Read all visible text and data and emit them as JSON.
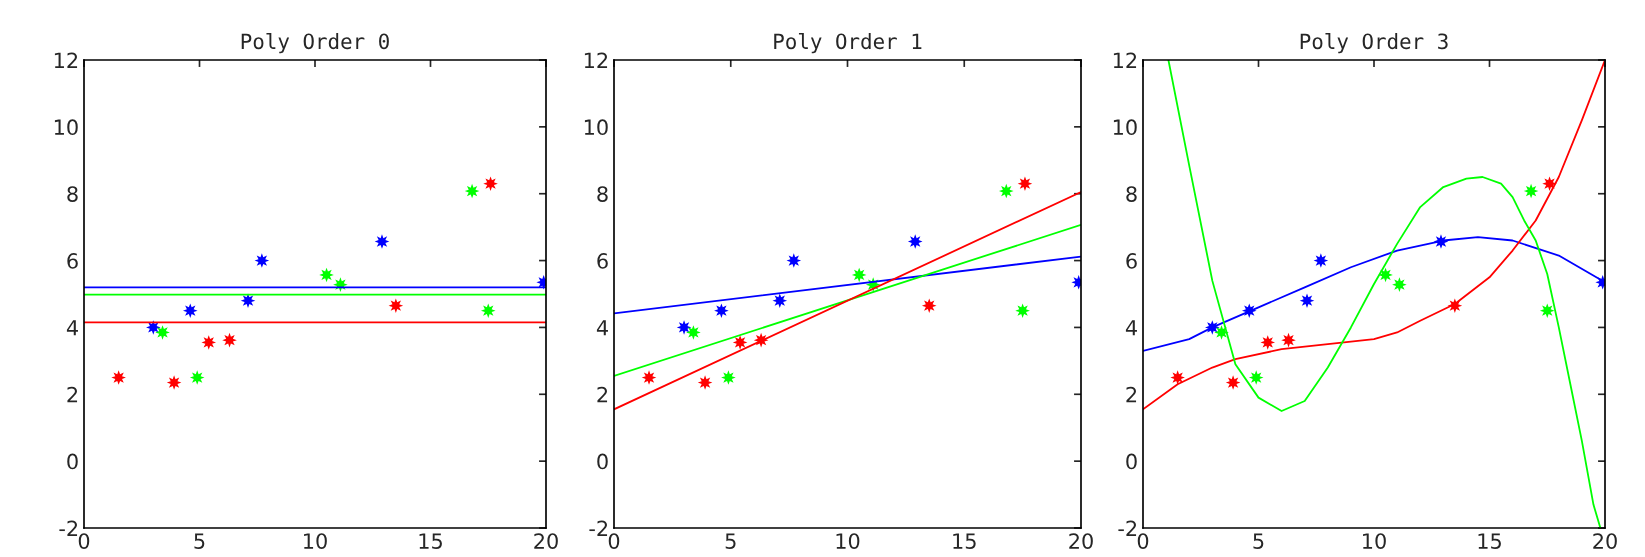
{
  "chart_data": [
    {
      "type": "scatter",
      "title": "Poly Order 0",
      "xlim": [
        0,
        20
      ],
      "ylim": [
        -2,
        12
      ],
      "xticks": [
        0,
        5,
        10,
        15,
        20
      ],
      "yticks": [
        -2,
        0,
        2,
        4,
        6,
        8,
        10,
        12
      ],
      "grid": false,
      "series": [
        {
          "marker": "star",
          "color": "#ff0000",
          "x": [
            1.5,
            3.9,
            5.4,
            6.3,
            13.5,
            17.6
          ],
          "values": [
            2.5,
            2.35,
            3.55,
            3.62,
            4.65,
            8.3
          ]
        },
        {
          "marker": "star",
          "color": "#0000ff",
          "x": [
            3.0,
            4.6,
            7.1,
            7.7,
            12.9,
            19.9
          ],
          "values": [
            4.0,
            4.5,
            4.8,
            6.0,
            6.57,
            5.35
          ]
        },
        {
          "marker": "star",
          "color": "#00ff00",
          "x": [
            3.4,
            4.9,
            10.5,
            11.1,
            16.8,
            17.5
          ],
          "values": [
            3.85,
            2.5,
            5.57,
            5.28,
            8.08,
            4.5
          ]
        },
        {
          "type": "line",
          "marker": "none",
          "color": "#0000ff",
          "x": [
            0,
            20
          ],
          "values": [
            5.2,
            5.2
          ]
        },
        {
          "type": "line",
          "marker": "none",
          "color": "#00ff00",
          "x": [
            0,
            20
          ],
          "values": [
            4.98,
            4.98
          ]
        },
        {
          "type": "line",
          "marker": "none",
          "color": "#ff0000",
          "x": [
            0,
            20
          ],
          "values": [
            4.15,
            4.15
          ]
        }
      ]
    },
    {
      "type": "scatter",
      "title": "Poly Order 1",
      "xlim": [
        0,
        20
      ],
      "ylim": [
        -2,
        12
      ],
      "xticks": [
        0,
        5,
        10,
        15,
        20
      ],
      "yticks": [
        -2,
        0,
        2,
        4,
        6,
        8,
        10,
        12
      ],
      "grid": false,
      "series": [
        {
          "marker": "star",
          "color": "#ff0000",
          "x": [
            1.5,
            3.9,
            5.4,
            6.3,
            13.5,
            17.6
          ],
          "values": [
            2.5,
            2.35,
            3.55,
            3.62,
            4.65,
            8.3
          ]
        },
        {
          "marker": "star",
          "color": "#0000ff",
          "x": [
            3.0,
            4.6,
            7.1,
            7.7,
            12.9,
            19.9
          ],
          "values": [
            4.0,
            4.5,
            4.8,
            6.0,
            6.57,
            5.35
          ]
        },
        {
          "marker": "star",
          "color": "#00ff00",
          "x": [
            3.4,
            4.9,
            10.5,
            11.1,
            16.8,
            17.5
          ],
          "values": [
            3.85,
            2.5,
            5.57,
            5.28,
            8.08,
            4.5
          ]
        },
        {
          "type": "line",
          "marker": "none",
          "color": "#0000ff",
          "x": [
            0,
            20
          ],
          "values": [
            4.42,
            6.12
          ]
        },
        {
          "type": "line",
          "marker": "none",
          "color": "#00ff00",
          "x": [
            0,
            20
          ],
          "values": [
            2.55,
            7.07
          ]
        },
        {
          "type": "line",
          "marker": "none",
          "color": "#ff0000",
          "x": [
            0,
            20
          ],
          "values": [
            1.55,
            8.05
          ]
        }
      ]
    },
    {
      "type": "scatter",
      "title": "Poly Order 3",
      "xlim": [
        0,
        20
      ],
      "ylim": [
        -2,
        12
      ],
      "xticks": [
        0,
        5,
        10,
        15,
        20
      ],
      "yticks": [
        -2,
        0,
        2,
        4,
        6,
        8,
        10,
        12
      ],
      "grid": false,
      "series": [
        {
          "marker": "star",
          "color": "#ff0000",
          "x": [
            1.5,
            3.9,
            5.4,
            6.3,
            13.5,
            17.6
          ],
          "values": [
            2.5,
            2.35,
            3.55,
            3.62,
            4.65,
            8.3
          ]
        },
        {
          "marker": "star",
          "color": "#0000ff",
          "x": [
            3.0,
            4.6,
            7.1,
            7.7,
            12.9,
            19.9
          ],
          "values": [
            4.0,
            4.5,
            4.8,
            6.0,
            6.57,
            5.35
          ]
        },
        {
          "marker": "star",
          "color": "#00ff00",
          "x": [
            3.4,
            4.9,
            10.5,
            11.1,
            16.8,
            17.5
          ],
          "values": [
            3.85,
            2.5,
            5.57,
            5.28,
            8.08,
            4.5
          ]
        },
        {
          "type": "line",
          "marker": "none",
          "color": "#0000ff",
          "x": [
            0,
            2,
            3,
            5,
            7,
            9,
            11,
            13,
            14.5,
            16,
            18,
            20
          ],
          "values": [
            3.3,
            3.65,
            4.0,
            4.6,
            5.2,
            5.8,
            6.3,
            6.6,
            6.7,
            6.6,
            6.15,
            5.35
          ]
        },
        {
          "type": "line",
          "marker": "none",
          "color": "#ff0000",
          "x": [
            0,
            1.5,
            3,
            4,
            6,
            8,
            10,
            11,
            12,
            13.5,
            15,
            16,
            17,
            18,
            19,
            20
          ],
          "values": [
            1.55,
            2.3,
            2.8,
            3.05,
            3.35,
            3.5,
            3.65,
            3.85,
            4.2,
            4.7,
            5.5,
            6.3,
            7.2,
            8.5,
            10.2,
            12.0
          ]
        },
        {
          "type": "line",
          "marker": "none",
          "color": "#00ff00",
          "x": [
            1.1,
            2,
            3,
            4,
            5,
            6,
            7,
            8,
            9,
            10,
            11,
            12,
            13,
            14,
            14.7,
            15.5,
            16,
            16.5,
            17,
            17.5,
            18,
            18.5,
            19,
            19.5,
            19.8
          ],
          "values": [
            12,
            8.85,
            5.4,
            2.9,
            1.9,
            1.5,
            1.8,
            2.8,
            4.0,
            5.3,
            6.5,
            7.6,
            8.2,
            8.45,
            8.5,
            8.3,
            7.9,
            7.2,
            6.6,
            5.6,
            4.0,
            2.3,
            0.6,
            -1.3,
            -2.0
          ]
        }
      ]
    }
  ]
}
